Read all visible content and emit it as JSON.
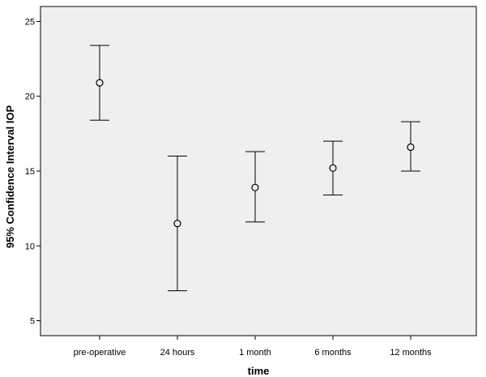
{
  "chart_data": {
    "type": "errorbar",
    "xlabel": "time",
    "ylabel": "95% Confidence Interval IOP",
    "ylim": [
      4,
      26
    ],
    "yticks": [
      5,
      10,
      15,
      20,
      25
    ],
    "categories": [
      "pre-operative",
      "24 hours",
      "1 month",
      "6 months",
      "12 months"
    ],
    "points": [
      {
        "category": "pre-operative",
        "mean": 20.9,
        "lower": 18.4,
        "upper": 23.4
      },
      {
        "category": "24 hours",
        "mean": 11.5,
        "lower": 7.0,
        "upper": 16.0
      },
      {
        "category": "1 month",
        "mean": 13.9,
        "lower": 11.6,
        "upper": 16.3
      },
      {
        "category": "6 months",
        "mean": 15.2,
        "lower": 13.4,
        "upper": 17.0
      },
      {
        "category": "12 months",
        "mean": 16.6,
        "lower": 15.0,
        "upper": 18.3
      }
    ],
    "plot_background": "#efefef",
    "marker_style": "open-circle",
    "grid": false
  }
}
